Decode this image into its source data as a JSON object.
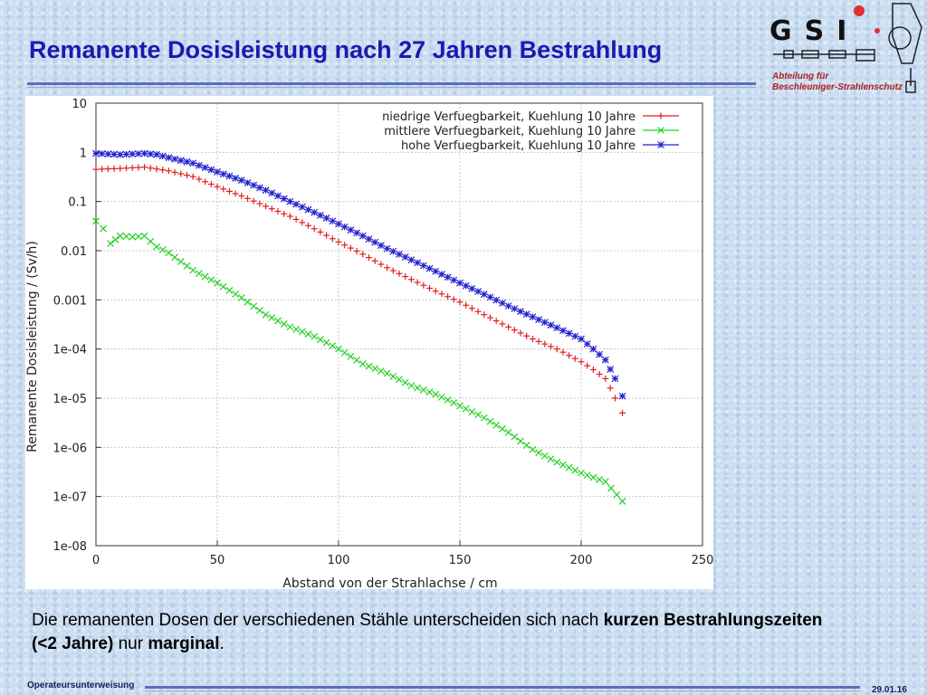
{
  "slide": {
    "title": "Remanente Dosisleistung nach 27 Jahren Bestrahlung",
    "logo_text": "GSI",
    "department_line1": "Abteilung für",
    "department_line2": "Beschleuniger-Strahlenschutz",
    "caption_part1": "Die remanenten Dosen der verschiedenen Stähle unterscheiden sich nach ",
    "caption_bold1": "kurzen Bestrahlungszeiten (<2 Jahre)",
    "caption_part2": " nur ",
    "caption_bold2": "marginal",
    "caption_end": ".",
    "footer_left": "Operateursunterweisung",
    "footer_right": "29.01.16",
    "accent_color": "#1a1ab0",
    "rule_color": "#5870b8"
  },
  "chart_data": {
    "type": "scatter",
    "title": "",
    "xlabel": "Abstand von der Strahlachse / cm",
    "ylabel": "Remanente Dosisleistung / (Sv/h)",
    "xlim": [
      0,
      250
    ],
    "ylim": [
      1e-08,
      10
    ],
    "yscale": "log",
    "x_ticks": [
      "0",
      "50",
      "100",
      "150",
      "200",
      "250"
    ],
    "y_ticks": [
      "10",
      "1",
      "0.1",
      "0.01",
      "0.001",
      "1e-04",
      "1e-05",
      "1e-06",
      "1e-07",
      "1e-08"
    ],
    "grid": true,
    "legend_position": "top-right",
    "series": [
      {
        "name": "niedrige Verfuegbarkeit, Kuehlung 10 Jahre",
        "color": "#e02020",
        "marker": "plus",
        "x": [
          0,
          10,
          20,
          30,
          40,
          50,
          60,
          70,
          80,
          90,
          100,
          110,
          120,
          130,
          140,
          150,
          160,
          170,
          180,
          190,
          200,
          205,
          210,
          212,
          214,
          217
        ],
        "y": [
          0.45,
          0.47,
          0.5,
          0.42,
          0.32,
          0.2,
          0.13,
          0.08,
          0.05,
          0.028,
          0.015,
          0.0085,
          0.0045,
          0.0026,
          0.0015,
          0.0009,
          0.0005,
          0.00028,
          0.00016,
          0.0001,
          5.5e-05,
          3.8e-05,
          2.5e-05,
          1.6e-05,
          1e-05,
          5e-06
        ]
      },
      {
        "name": "mittlere Verfuegbarkeit, Kuehlung 10 Jahre",
        "color": "#20d020",
        "marker": "cross",
        "x": [
          0,
          3,
          6,
          10,
          15,
          20,
          25,
          30,
          35,
          40,
          50,
          60,
          70,
          80,
          90,
          100,
          110,
          120,
          130,
          140,
          150,
          160,
          170,
          180,
          190,
          200,
          210,
          217
        ],
        "y": [
          0.04,
          0.028,
          0.014,
          0.02,
          0.019,
          0.02,
          0.012,
          0.009,
          0.006,
          0.004,
          0.0022,
          0.0011,
          0.0005,
          0.00028,
          0.00018,
          0.0001,
          5e-05,
          3.2e-05,
          1.8e-05,
          1.2e-05,
          7e-06,
          4e-06,
          2e-06,
          9e-07,
          5e-07,
          3e-07,
          2e-07,
          8e-08
        ]
      },
      {
        "name": "hohe Verfuegbarkeit, Kuehlung 10 Jahre",
        "color": "#2020d0",
        "marker": "star",
        "x": [
          0,
          10,
          20,
          25,
          30,
          40,
          50,
          60,
          70,
          80,
          90,
          100,
          110,
          120,
          130,
          140,
          150,
          160,
          170,
          180,
          190,
          200,
          205,
          210,
          214,
          217
        ],
        "y": [
          0.95,
          0.9,
          0.95,
          0.9,
          0.78,
          0.6,
          0.4,
          0.27,
          0.17,
          0.1,
          0.06,
          0.035,
          0.02,
          0.011,
          0.0065,
          0.0038,
          0.0022,
          0.0013,
          0.00075,
          0.00045,
          0.00027,
          0.00016,
          0.0001,
          6e-05,
          2.5e-05,
          1.1e-05
        ]
      }
    ]
  }
}
